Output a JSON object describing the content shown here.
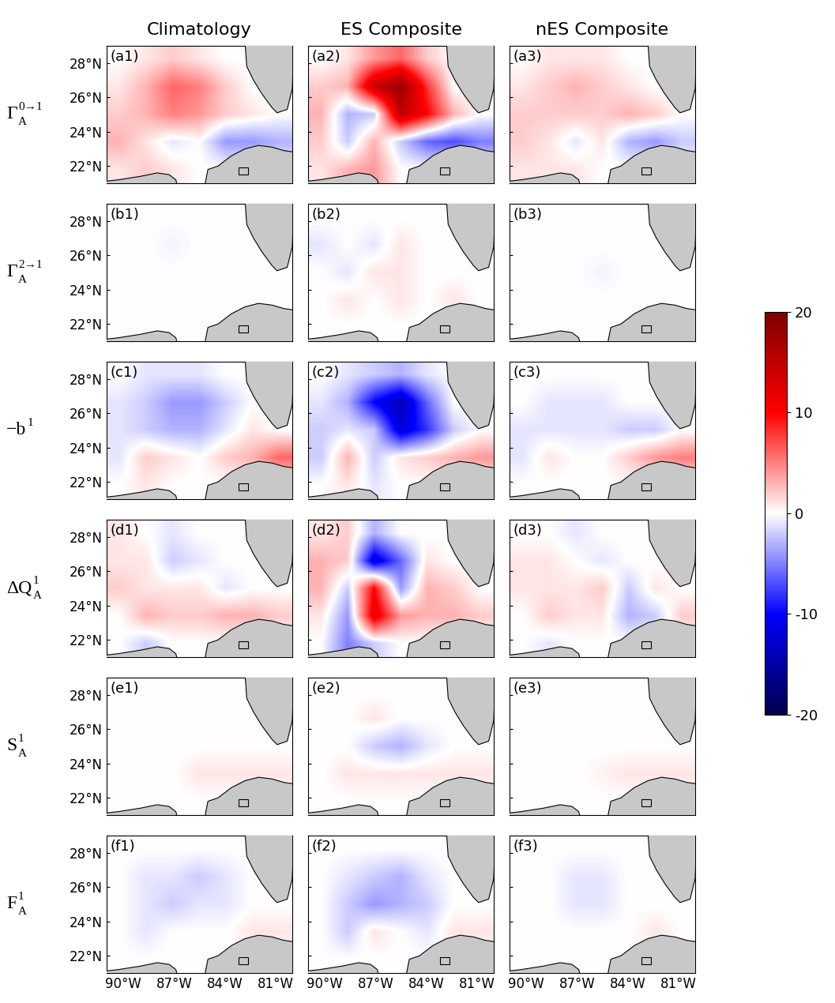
{
  "chart_data": {
    "type": "heatmap",
    "columns": [
      "Climatology",
      "ES Composite",
      "nES Composite"
    ],
    "rows": [
      {
        "base": "Γ",
        "sub": "A",
        "sup": "0→1"
      },
      {
        "base": "Γ",
        "sub": "A",
        "sup": "2→1"
      },
      {
        "base": "−b",
        "sub": null,
        "sup": "1"
      },
      {
        "base": "ΔQ",
        "sub": "A",
        "sup": "1"
      },
      {
        "base": "S",
        "sub": "A",
        "sup": "1"
      },
      {
        "base": "F",
        "sub": "A",
        "sup": "1"
      }
    ],
    "xlim": [
      -91,
      -80
    ],
    "ylim": [
      21,
      29
    ],
    "xticks": [
      {
        "value": -90,
        "label": "90°W"
      },
      {
        "value": -87,
        "label": "87°W"
      },
      {
        "value": -84,
        "label": "84°W"
      },
      {
        "value": -81,
        "label": "81°W"
      }
    ],
    "yticks": [
      {
        "value": 22,
        "label": "22°N"
      },
      {
        "value": 24,
        "label": "24°N"
      },
      {
        "value": 26,
        "label": "26°N"
      },
      {
        "value": 28,
        "label": "28°N"
      }
    ],
    "colorbar": {
      "range": [
        -20,
        20
      ],
      "ticks": [
        -20,
        -10,
        0,
        10,
        20
      ]
    },
    "panels": [
      {
        "label": "(a1)",
        "row": 0,
        "col": 0,
        "cells": [
          [
            0,
            1,
            2,
            1,
            0,
            0,
            0
          ],
          [
            1,
            3,
            6,
            5,
            2,
            0,
            0
          ],
          [
            2,
            3,
            5,
            4,
            2,
            1,
            0
          ],
          [
            3,
            1,
            -1,
            0,
            -4,
            -4,
            -3
          ],
          [
            1,
            2,
            1,
            0,
            0,
            0,
            0
          ]
        ]
      },
      {
        "label": "(a2)",
        "row": 0,
        "col": 1,
        "cells": [
          [
            0,
            1,
            4,
            6,
            2,
            0,
            0
          ],
          [
            2,
            3,
            14,
            18,
            8,
            0,
            0
          ],
          [
            3,
            -3,
            -2,
            15,
            10,
            3,
            0
          ],
          [
            2,
            -2,
            3,
            -2,
            -6,
            -7,
            -5
          ],
          [
            1,
            3,
            4,
            0,
            0,
            0,
            0
          ]
        ]
      },
      {
        "label": "(a3)",
        "row": 0,
        "col": 2,
        "cells": [
          [
            0,
            1,
            1,
            1,
            0,
            0,
            0
          ],
          [
            1,
            2,
            3,
            2,
            1,
            0,
            0
          ],
          [
            2,
            2,
            2,
            2,
            3,
            2,
            0
          ],
          [
            2,
            1,
            -1,
            1,
            -3,
            -4,
            -2
          ],
          [
            1,
            1,
            1,
            0,
            0,
            0,
            0
          ]
        ]
      },
      {
        "label": "(b1)",
        "row": 1,
        "col": 0,
        "cells": [
          [
            0,
            0,
            0,
            0,
            0,
            0,
            0
          ],
          [
            0,
            0,
            -0.5,
            0,
            0,
            0,
            0
          ],
          [
            0,
            0,
            0,
            0,
            0,
            0,
            0
          ],
          [
            0,
            0,
            0,
            0,
            0,
            0,
            0
          ],
          [
            0,
            0,
            0,
            0,
            0,
            0,
            0
          ]
        ]
      },
      {
        "label": "(b2)",
        "row": 1,
        "col": 1,
        "cells": [
          [
            0,
            0,
            0,
            0,
            0,
            0,
            0
          ],
          [
            -1,
            0,
            -1,
            1,
            0,
            0,
            0
          ],
          [
            0,
            -1,
            1,
            1,
            0,
            0,
            0
          ],
          [
            0,
            1,
            0,
            1,
            0,
            1,
            0
          ],
          [
            0,
            0,
            0,
            0,
            0,
            0,
            0
          ]
        ]
      },
      {
        "label": "(b3)",
        "row": 1,
        "col": 2,
        "cells": [
          [
            0,
            0,
            0,
            0,
            0,
            0,
            0
          ],
          [
            0,
            0,
            0,
            0,
            0,
            0,
            0
          ],
          [
            0,
            0,
            0,
            -0.5,
            0,
            0,
            0
          ],
          [
            0,
            0,
            0,
            0,
            0,
            0,
            0
          ],
          [
            0,
            0,
            0,
            0,
            0,
            0,
            0
          ]
        ]
      },
      {
        "label": "(c1)",
        "row": 2,
        "col": 0,
        "cells": [
          [
            0,
            -1,
            -1,
            -1,
            0,
            0,
            0
          ],
          [
            -1,
            -2,
            -4,
            -4,
            -2,
            0,
            0
          ],
          [
            -1,
            -2,
            -3,
            -3,
            -1,
            1,
            0
          ],
          [
            -1,
            2,
            1,
            0,
            2,
            3,
            6
          ],
          [
            0,
            1,
            0,
            0,
            0,
            0,
            0
          ]
        ]
      },
      {
        "label": "(c2)",
        "row": 2,
        "col": 1,
        "cells": [
          [
            0,
            -1,
            -2,
            -3,
            -1,
            0,
            0
          ],
          [
            -1,
            -3,
            -10,
            -14,
            -6,
            0,
            0
          ],
          [
            -2,
            -1,
            -2,
            -12,
            -8,
            -2,
            0
          ],
          [
            -2,
            3,
            -2,
            1,
            2,
            3,
            4
          ],
          [
            0,
            1,
            -1,
            0,
            0,
            0,
            0
          ]
        ]
      },
      {
        "label": "(c3)",
        "row": 2,
        "col": 2,
        "cells": [
          [
            0,
            0,
            0,
            0,
            0,
            0,
            0
          ],
          [
            0,
            -1,
            -1,
            -1,
            0,
            0,
            0
          ],
          [
            -1,
            -1,
            -1,
            -1,
            -2,
            -2,
            0
          ],
          [
            -1,
            1,
            0,
            0,
            2,
            4,
            5
          ],
          [
            0,
            0,
            0,
            0,
            0,
            0,
            0
          ]
        ]
      },
      {
        "label": "(d1)",
        "row": 3,
        "col": 0,
        "cells": [
          [
            1,
            0,
            -1,
            0,
            0,
            0,
            0
          ],
          [
            1,
            1,
            -2,
            -1,
            0,
            0,
            0
          ],
          [
            2,
            1,
            1,
            1,
            -1,
            0,
            0
          ],
          [
            0,
            3,
            2,
            2,
            3,
            3,
            2
          ],
          [
            0,
            -2,
            0,
            0,
            0,
            0,
            0
          ]
        ]
      },
      {
        "label": "(d2)",
        "row": 3,
        "col": 1,
        "cells": [
          [
            1,
            2,
            -3,
            0,
            0,
            0,
            0
          ],
          [
            3,
            2,
            -12,
            -6,
            1,
            0,
            0
          ],
          [
            3,
            -2,
            10,
            -4,
            3,
            2,
            0
          ],
          [
            1,
            -4,
            12,
            4,
            3,
            3,
            2
          ],
          [
            0,
            -5,
            -2,
            0,
            0,
            0,
            0
          ]
        ]
      },
      {
        "label": "(d3)",
        "row": 3,
        "col": 2,
        "cells": [
          [
            0,
            0,
            -1,
            0,
            0,
            0,
            0
          ],
          [
            1,
            1,
            0,
            -1,
            0,
            0,
            0
          ],
          [
            1,
            1,
            1,
            2,
            -2,
            1,
            0
          ],
          [
            0,
            2,
            1,
            1,
            -3,
            -2,
            2
          ],
          [
            0,
            -1,
            0,
            0,
            0,
            0,
            0
          ]
        ]
      },
      {
        "label": "(e1)",
        "row": 4,
        "col": 0,
        "cells": [
          [
            0,
            0,
            0,
            0,
            0,
            0,
            0
          ],
          [
            0,
            0,
            0,
            0,
            0,
            0,
            0
          ],
          [
            0,
            0,
            0,
            0,
            0,
            0,
            0
          ],
          [
            0,
            0,
            0,
            1,
            1,
            1,
            1
          ],
          [
            0,
            0,
            0,
            0,
            0,
            0,
            0
          ]
        ]
      },
      {
        "label": "(e2)",
        "row": 4,
        "col": 1,
        "cells": [
          [
            0,
            0,
            0,
            0,
            0,
            0,
            0
          ],
          [
            0,
            0,
            1,
            0,
            0,
            0,
            0
          ],
          [
            0,
            0,
            -2,
            -3,
            -1,
            0,
            0
          ],
          [
            0,
            1,
            1,
            1,
            1,
            1,
            1
          ],
          [
            0,
            0,
            0,
            0,
            0,
            0,
            0
          ]
        ]
      },
      {
        "label": "(e3)",
        "row": 4,
        "col": 2,
        "cells": [
          [
            0,
            0,
            0,
            0,
            0,
            0,
            0
          ],
          [
            0,
            0,
            0,
            0,
            0,
            0,
            0
          ],
          [
            0,
            0,
            0,
            0,
            0,
            0,
            0
          ],
          [
            0,
            0,
            0,
            0.5,
            1,
            1,
            1
          ],
          [
            0,
            0,
            0,
            0,
            0,
            0,
            0
          ]
        ]
      },
      {
        "label": "(f1)",
        "row": 5,
        "col": 0,
        "cells": [
          [
            0,
            0,
            0,
            0,
            0,
            0,
            0
          ],
          [
            0,
            -1,
            -1,
            -2,
            -1,
            0,
            0
          ],
          [
            0,
            -1,
            -2,
            -1,
            -1,
            0,
            0
          ],
          [
            0,
            -1,
            0,
            0,
            0,
            1,
            1
          ],
          [
            0,
            0,
            0,
            0,
            0,
            0,
            0
          ]
        ]
      },
      {
        "label": "(f2)",
        "row": 5,
        "col": 1,
        "cells": [
          [
            0,
            0,
            0,
            0,
            0,
            0,
            0
          ],
          [
            0,
            -1,
            -2,
            -3,
            -1,
            0,
            0
          ],
          [
            0,
            -2,
            -4,
            -3,
            -2,
            0,
            0
          ],
          [
            0,
            -2,
            1,
            0,
            -1,
            1,
            1
          ],
          [
            0,
            0,
            0,
            0,
            0,
            0,
            0
          ]
        ]
      },
      {
        "label": "(f3)",
        "row": 5,
        "col": 2,
        "cells": [
          [
            0,
            0,
            0,
            0,
            0,
            0,
            0
          ],
          [
            0,
            0,
            -1,
            -1,
            0,
            0,
            0
          ],
          [
            0,
            0,
            -1,
            -1,
            0,
            0,
            0
          ],
          [
            0,
            0,
            0,
            0,
            0,
            1,
            0
          ],
          [
            0,
            0,
            0,
            0,
            0,
            0,
            0
          ]
        ]
      }
    ]
  }
}
